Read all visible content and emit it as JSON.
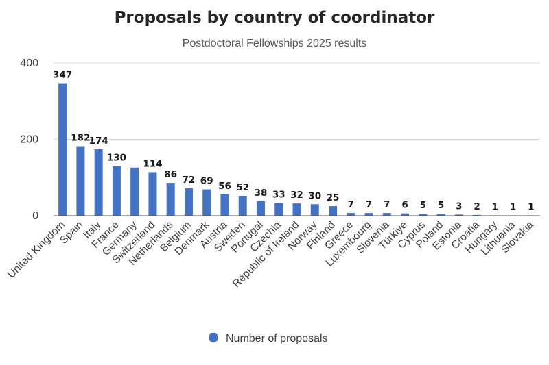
{
  "chart_data": {
    "type": "bar",
    "title": "Proposals by country of coordinator",
    "subtitle": "Postdoctoral Fellowships 2025 results",
    "xlabel": "",
    "ylabel": "",
    "ylim": [
      0,
      400
    ],
    "yticks": [
      0,
      200,
      400
    ],
    "grid": true,
    "legend_position": "bottom",
    "colors": {
      "bar": "#4472C4",
      "grid": "#d9d9d9",
      "axis": "#595959"
    },
    "categories": [
      "United Kingdom",
      "Spain",
      "Italy",
      "France",
      "Germany",
      "Switzerland",
      "Netherlands",
      "Belgium",
      "Denmark",
      "Austria",
      "Sweden",
      "Portugal",
      "Czechia",
      "Republic of Ireland",
      "Norway",
      "Finland",
      "Greece",
      "Luxembourg",
      "Slovenia",
      "Türkiye",
      "Cyprus",
      "Poland",
      "Estonia",
      "Croatia",
      "Hungary",
      "Lithuania",
      "Slovakia"
    ],
    "series": [
      {
        "name": "Number of proposals",
        "values": [
          347,
          182,
          174,
          130,
          126,
          114,
          86,
          72,
          69,
          56,
          52,
          38,
          33,
          32,
          30,
          25,
          7,
          7,
          7,
          6,
          5,
          5,
          3,
          2,
          1,
          1,
          1
        ],
        "data_labels": [
          "347",
          "182",
          "174",
          "130",
          "",
          "114",
          "86",
          "72",
          "69",
          "56",
          "52",
          "38",
          "33",
          "32",
          "30",
          "25",
          "7",
          "7",
          "7",
          "6",
          "5",
          "5",
          "3",
          "2",
          "1",
          "1",
          "1"
        ]
      }
    ]
  }
}
